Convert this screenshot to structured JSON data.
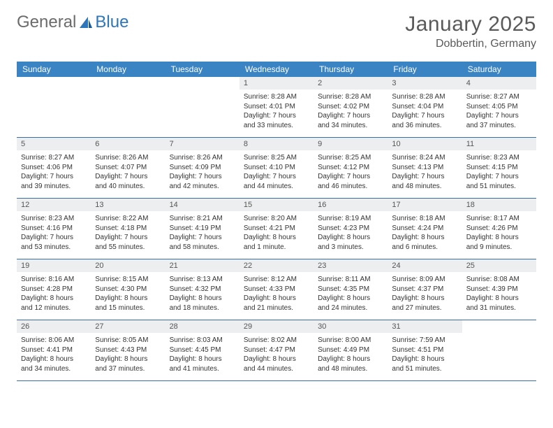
{
  "brand": {
    "name1": "General",
    "name2": "Blue"
  },
  "title": "January 2025",
  "location": "Dobbertin, Germany",
  "colors": {
    "header_bg": "#3b84c4",
    "header_text": "#ffffff",
    "daynum_bg": "#eceef0",
    "border": "#3b6fa3",
    "text": "#333333",
    "title_color": "#5a5a5a",
    "logo_gray": "#6b6b6b",
    "logo_blue": "#2d76bb"
  },
  "day_headers": [
    "Sunday",
    "Monday",
    "Tuesday",
    "Wednesday",
    "Thursday",
    "Friday",
    "Saturday"
  ],
  "weeks": [
    [
      {
        "day": "",
        "sunrise": "",
        "sunset": "",
        "daylight": ""
      },
      {
        "day": "",
        "sunrise": "",
        "sunset": "",
        "daylight": ""
      },
      {
        "day": "",
        "sunrise": "",
        "sunset": "",
        "daylight": ""
      },
      {
        "day": "1",
        "sunrise": "Sunrise: 8:28 AM",
        "sunset": "Sunset: 4:01 PM",
        "daylight": "Daylight: 7 hours and 33 minutes."
      },
      {
        "day": "2",
        "sunrise": "Sunrise: 8:28 AM",
        "sunset": "Sunset: 4:02 PM",
        "daylight": "Daylight: 7 hours and 34 minutes."
      },
      {
        "day": "3",
        "sunrise": "Sunrise: 8:28 AM",
        "sunset": "Sunset: 4:04 PM",
        "daylight": "Daylight: 7 hours and 36 minutes."
      },
      {
        "day": "4",
        "sunrise": "Sunrise: 8:27 AM",
        "sunset": "Sunset: 4:05 PM",
        "daylight": "Daylight: 7 hours and 37 minutes."
      }
    ],
    [
      {
        "day": "5",
        "sunrise": "Sunrise: 8:27 AM",
        "sunset": "Sunset: 4:06 PM",
        "daylight": "Daylight: 7 hours and 39 minutes."
      },
      {
        "day": "6",
        "sunrise": "Sunrise: 8:26 AM",
        "sunset": "Sunset: 4:07 PM",
        "daylight": "Daylight: 7 hours and 40 minutes."
      },
      {
        "day": "7",
        "sunrise": "Sunrise: 8:26 AM",
        "sunset": "Sunset: 4:09 PM",
        "daylight": "Daylight: 7 hours and 42 minutes."
      },
      {
        "day": "8",
        "sunrise": "Sunrise: 8:25 AM",
        "sunset": "Sunset: 4:10 PM",
        "daylight": "Daylight: 7 hours and 44 minutes."
      },
      {
        "day": "9",
        "sunrise": "Sunrise: 8:25 AM",
        "sunset": "Sunset: 4:12 PM",
        "daylight": "Daylight: 7 hours and 46 minutes."
      },
      {
        "day": "10",
        "sunrise": "Sunrise: 8:24 AM",
        "sunset": "Sunset: 4:13 PM",
        "daylight": "Daylight: 7 hours and 48 minutes."
      },
      {
        "day": "11",
        "sunrise": "Sunrise: 8:23 AM",
        "sunset": "Sunset: 4:15 PM",
        "daylight": "Daylight: 7 hours and 51 minutes."
      }
    ],
    [
      {
        "day": "12",
        "sunrise": "Sunrise: 8:23 AM",
        "sunset": "Sunset: 4:16 PM",
        "daylight": "Daylight: 7 hours and 53 minutes."
      },
      {
        "day": "13",
        "sunrise": "Sunrise: 8:22 AM",
        "sunset": "Sunset: 4:18 PM",
        "daylight": "Daylight: 7 hours and 55 minutes."
      },
      {
        "day": "14",
        "sunrise": "Sunrise: 8:21 AM",
        "sunset": "Sunset: 4:19 PM",
        "daylight": "Daylight: 7 hours and 58 minutes."
      },
      {
        "day": "15",
        "sunrise": "Sunrise: 8:20 AM",
        "sunset": "Sunset: 4:21 PM",
        "daylight": "Daylight: 8 hours and 1 minute."
      },
      {
        "day": "16",
        "sunrise": "Sunrise: 8:19 AM",
        "sunset": "Sunset: 4:23 PM",
        "daylight": "Daylight: 8 hours and 3 minutes."
      },
      {
        "day": "17",
        "sunrise": "Sunrise: 8:18 AM",
        "sunset": "Sunset: 4:24 PM",
        "daylight": "Daylight: 8 hours and 6 minutes."
      },
      {
        "day": "18",
        "sunrise": "Sunrise: 8:17 AM",
        "sunset": "Sunset: 4:26 PM",
        "daylight": "Daylight: 8 hours and 9 minutes."
      }
    ],
    [
      {
        "day": "19",
        "sunrise": "Sunrise: 8:16 AM",
        "sunset": "Sunset: 4:28 PM",
        "daylight": "Daylight: 8 hours and 12 minutes."
      },
      {
        "day": "20",
        "sunrise": "Sunrise: 8:15 AM",
        "sunset": "Sunset: 4:30 PM",
        "daylight": "Daylight: 8 hours and 15 minutes."
      },
      {
        "day": "21",
        "sunrise": "Sunrise: 8:13 AM",
        "sunset": "Sunset: 4:32 PM",
        "daylight": "Daylight: 8 hours and 18 minutes."
      },
      {
        "day": "22",
        "sunrise": "Sunrise: 8:12 AM",
        "sunset": "Sunset: 4:33 PM",
        "daylight": "Daylight: 8 hours and 21 minutes."
      },
      {
        "day": "23",
        "sunrise": "Sunrise: 8:11 AM",
        "sunset": "Sunset: 4:35 PM",
        "daylight": "Daylight: 8 hours and 24 minutes."
      },
      {
        "day": "24",
        "sunrise": "Sunrise: 8:09 AM",
        "sunset": "Sunset: 4:37 PM",
        "daylight": "Daylight: 8 hours and 27 minutes."
      },
      {
        "day": "25",
        "sunrise": "Sunrise: 8:08 AM",
        "sunset": "Sunset: 4:39 PM",
        "daylight": "Daylight: 8 hours and 31 minutes."
      }
    ],
    [
      {
        "day": "26",
        "sunrise": "Sunrise: 8:06 AM",
        "sunset": "Sunset: 4:41 PM",
        "daylight": "Daylight: 8 hours and 34 minutes."
      },
      {
        "day": "27",
        "sunrise": "Sunrise: 8:05 AM",
        "sunset": "Sunset: 4:43 PM",
        "daylight": "Daylight: 8 hours and 37 minutes."
      },
      {
        "day": "28",
        "sunrise": "Sunrise: 8:03 AM",
        "sunset": "Sunset: 4:45 PM",
        "daylight": "Daylight: 8 hours and 41 minutes."
      },
      {
        "day": "29",
        "sunrise": "Sunrise: 8:02 AM",
        "sunset": "Sunset: 4:47 PM",
        "daylight": "Daylight: 8 hours and 44 minutes."
      },
      {
        "day": "30",
        "sunrise": "Sunrise: 8:00 AM",
        "sunset": "Sunset: 4:49 PM",
        "daylight": "Daylight: 8 hours and 48 minutes."
      },
      {
        "day": "31",
        "sunrise": "Sunrise: 7:59 AM",
        "sunset": "Sunset: 4:51 PM",
        "daylight": "Daylight: 8 hours and 51 minutes."
      },
      {
        "day": "",
        "sunrise": "",
        "sunset": "",
        "daylight": ""
      }
    ]
  ]
}
